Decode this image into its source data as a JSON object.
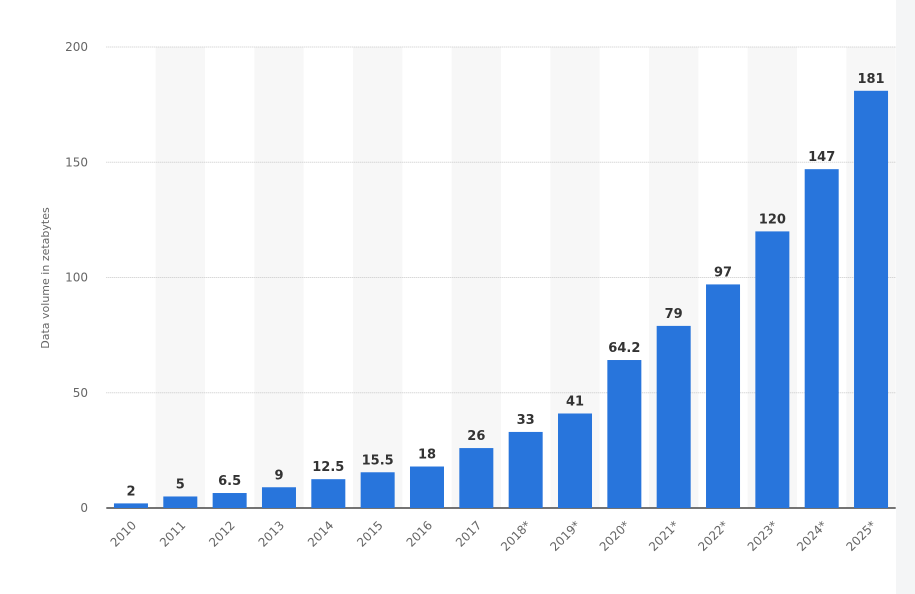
{
  "chart_data": {
    "type": "bar",
    "categories": [
      "2010",
      "2011",
      "2012",
      "2013",
      "2014",
      "2015",
      "2016",
      "2017",
      "2018*",
      "2019*",
      "2020*",
      "2021*",
      "2022*",
      "2023*",
      "2024*",
      "2025*"
    ],
    "values": [
      2,
      5,
      6.5,
      9,
      12.5,
      15.5,
      18,
      26,
      33,
      41,
      64.2,
      79,
      97,
      120,
      147,
      181
    ],
    "data_labels": [
      "2",
      "5",
      "6.5",
      "9",
      "12.5",
      "15.5",
      "18",
      "26",
      "33",
      "41",
      "64.2",
      "79",
      "97",
      "120",
      "147",
      "181"
    ],
    "title": "",
    "xlabel": "",
    "ylabel": "Data volume in zetabytes",
    "ylim": [
      0,
      200
    ],
    "yticks": [
      0,
      50,
      100,
      150,
      200
    ],
    "ytick_labels": [
      "0",
      "50",
      "100",
      "150",
      "200"
    ],
    "grid": true,
    "bar_color": "#2875dc",
    "alternating_band_color": "#f7f7f7"
  }
}
